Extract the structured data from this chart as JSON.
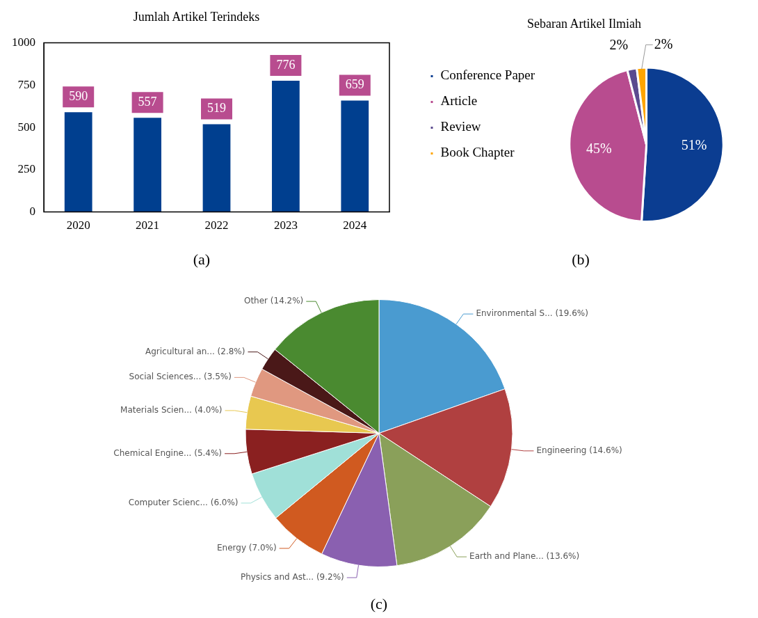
{
  "chart_data": [
    {
      "type": "bar",
      "title": "Jumlah Artikel Terindeks",
      "categories": [
        "2020",
        "2021",
        "2022",
        "2023",
        "2024"
      ],
      "values": [
        590,
        557,
        519,
        776,
        659
      ],
      "color": "#003f8f",
      "ylim": [
        0,
        1000
      ],
      "yticks": [
        0,
        250,
        500,
        750,
        1000
      ],
      "grid": false,
      "legend": false,
      "data_labels": true,
      "annotations": [
        "(a)"
      ]
    },
    {
      "type": "pie",
      "title": "Sebaran Artikel Ilmiah",
      "categories": [
        "Conference Paper",
        "Article",
        "Review",
        "Book Chapter"
      ],
      "values": [
        51,
        45,
        2,
        2
      ],
      "colors": [
        "#0b3d91",
        "#b84c8f",
        "#5b4a8f",
        "#ffa500"
      ],
      "legend": "left",
      "value_labels": [
        "51%",
        "45%",
        "2%",
        "2%"
      ],
      "annotations": [
        "(b)"
      ]
    },
    {
      "type": "pie",
      "categories": [
        "Environmental S...",
        "Engineering",
        "Earth and Plane...",
        "Physics and Ast...",
        "Energy",
        "Computer Scienc...",
        "Chemical Engine...",
        "Materials Scien...",
        "Social Sciences...",
        "Agricultural an...",
        "Other"
      ],
      "values": [
        19.6,
        14.6,
        13.6,
        9.2,
        7.0,
        6.0,
        5.4,
        4.0,
        3.5,
        2.8,
        14.2
      ],
      "colors": [
        "#4a9bd0",
        "#b04040",
        "#8aa05a",
        "#8a60b0",
        "#d05a20",
        "#a0e0d8",
        "#8a2020",
        "#e8c850",
        "#e09880",
        "#4a1818",
        "#4a8a30"
      ],
      "legend": false,
      "value_labels": [
        "(19.6%)",
        "(14.6%)",
        "(13.6%)",
        "(9.2%)",
        "(7.0%)",
        "(6.0%)",
        "(5.4%)",
        "(4.0%)",
        "(3.5%)",
        "(2.8%)",
        "(14.2%)"
      ],
      "annotations": [
        "(c)"
      ]
    }
  ]
}
